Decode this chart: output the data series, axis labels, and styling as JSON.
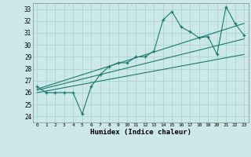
{
  "xlabel": "Humidex (Indice chaleur)",
  "xlim": [
    -0.5,
    23.5
  ],
  "ylim": [
    23.5,
    33.5
  ],
  "xticks": [
    0,
    1,
    2,
    3,
    4,
    5,
    6,
    7,
    8,
    9,
    10,
    11,
    12,
    13,
    14,
    15,
    16,
    17,
    18,
    19,
    20,
    21,
    22,
    23
  ],
  "yticks": [
    24,
    25,
    26,
    27,
    28,
    29,
    30,
    31,
    32,
    33
  ],
  "bg_color": "#cce8e8",
  "grid_color": "#aad4d4",
  "line_color": "#1a7a6e",
  "data_x": [
    0,
    1,
    2,
    3,
    4,
    5,
    6,
    7,
    8,
    9,
    10,
    11,
    12,
    13,
    14,
    15,
    16,
    17,
    18,
    19,
    20,
    21,
    22,
    23
  ],
  "data_y": [
    26.5,
    26.0,
    26.0,
    26.0,
    26.0,
    24.2,
    26.5,
    27.5,
    28.2,
    28.5,
    28.5,
    29.0,
    29.0,
    29.5,
    32.1,
    32.8,
    31.5,
    31.1,
    30.6,
    30.7,
    29.2,
    33.2,
    31.8,
    30.8
  ],
  "trend1_x": [
    0,
    23
  ],
  "trend1_y": [
    26.0,
    29.2
  ],
  "trend2_x": [
    0,
    23
  ],
  "trend2_y": [
    26.2,
    30.5
  ],
  "trend3_x": [
    0,
    23
  ],
  "trend3_y": [
    26.3,
    31.8
  ]
}
